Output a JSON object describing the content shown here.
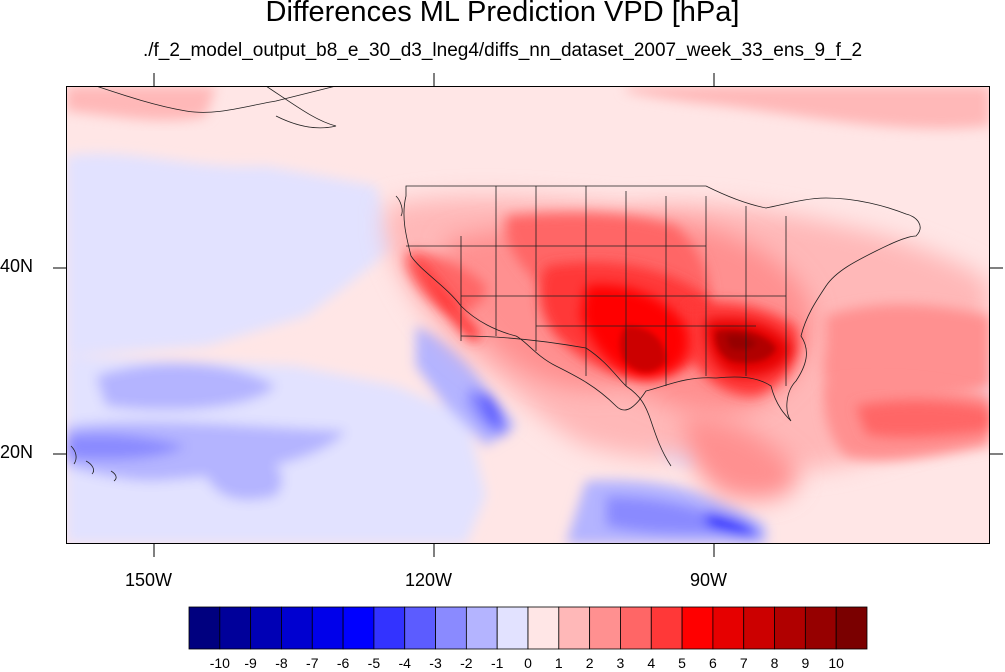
{
  "title": "Differences ML Prediction VPD [hPa]",
  "subtitle": "./f_2_model_output_b8_e_30_d3_lneg4/diffs_nn_dataset_2007_week_33_ens_9_f_2",
  "map": {
    "projection": "cylindrical equidistant",
    "lon_range": [
      -160,
      -61
    ],
    "lat_range": [
      11,
      59
    ],
    "boundaries": [
      "coastlines",
      "US state borders",
      "Mexico border",
      "Canada border"
    ]
  },
  "axes": {
    "lon_ticks": [
      "150W",
      "120W",
      "90W"
    ],
    "lat_ticks": [
      "40N",
      "20N"
    ]
  },
  "colorbar": {
    "labels": [
      "-10",
      "-9",
      "-8",
      "-7",
      "-6",
      "-5",
      "-4",
      "-3",
      "-2",
      "-1",
      "0",
      "1",
      "2",
      "3",
      "4",
      "5",
      "6",
      "7",
      "8",
      "9",
      "10"
    ],
    "colors": [
      "#00007f",
      "#00009a",
      "#0000b5",
      "#0000d0",
      "#0000ea",
      "#0000ff",
      "#3333ff",
      "#5c5cff",
      "#8a8aff",
      "#b4b4ff",
      "#e2e2ff",
      "#ffe6e6",
      "#ffb8b8",
      "#ff9090",
      "#ff6666",
      "#ff3838",
      "#ff0000",
      "#e60000",
      "#cc0000",
      "#b00000",
      "#960000",
      "#7a0000"
    ]
  }
}
